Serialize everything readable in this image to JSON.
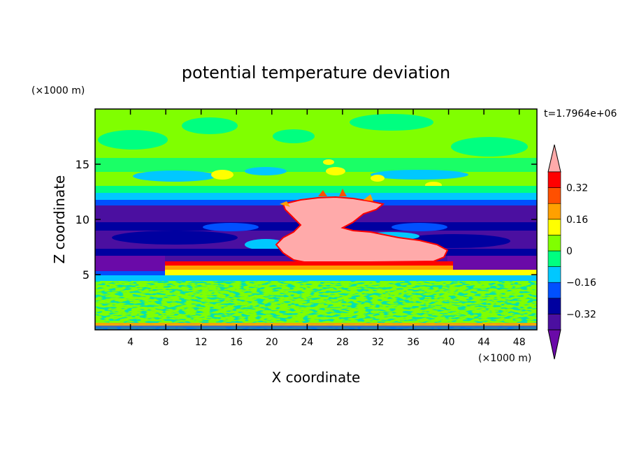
{
  "chart_data": {
    "type": "heatmap",
    "title": "potential temperature deviation",
    "xlabel": "X coordinate",
    "ylabel": "Z coordinate",
    "x_unit": "(×1000 m)",
    "y_unit": "(×1000 m)",
    "time_label": "t=1.7964e+06",
    "xlim": [
      0,
      50
    ],
    "ylim": [
      0,
      20
    ],
    "x_ticks": [
      4,
      8,
      12,
      16,
      20,
      24,
      28,
      32,
      36,
      40,
      44,
      48
    ],
    "y_ticks": [
      5,
      10,
      15
    ],
    "colorbar": {
      "levels": [
        -0.4,
        -0.32,
        -0.24,
        -0.16,
        -0.08,
        0,
        0.08,
        0.16,
        0.24,
        0.32,
        0.4
      ],
      "labeled_levels": [
        0.32,
        0.16,
        0,
        -0.16,
        -0.32
      ],
      "labels": [
        "0.32",
        "0.16",
        "0",
        "−0.16",
        "−0.32"
      ],
      "colors_low_to_high": [
        "#6a0aa8",
        "#4b0fa0",
        "#0000a0",
        "#0050ff",
        "#00c8ff",
        "#00ff80",
        "#80ff00",
        "#ffff00",
        "#ffa000",
        "#ff5000",
        "#ff0000",
        "#ffaaaa"
      ],
      "extend": "both"
    },
    "regions_description_values": {
      "surface_layer_0_5km": "mixed green/cyan (about -0.08 to 0.08)",
      "inversion_5_6km": "red/orange band (about 0.24 to 0.4)",
      "mid_layer_6_12km": "purple/blue (about -0.4 to -0.16)",
      "cloud_anvil_center": "pink (> 0.4), x 20-40, z 6-12",
      "upper_layer_12_20km": "green/cyan with yellow patches (about -0.08 to 0.16)"
    }
  }
}
